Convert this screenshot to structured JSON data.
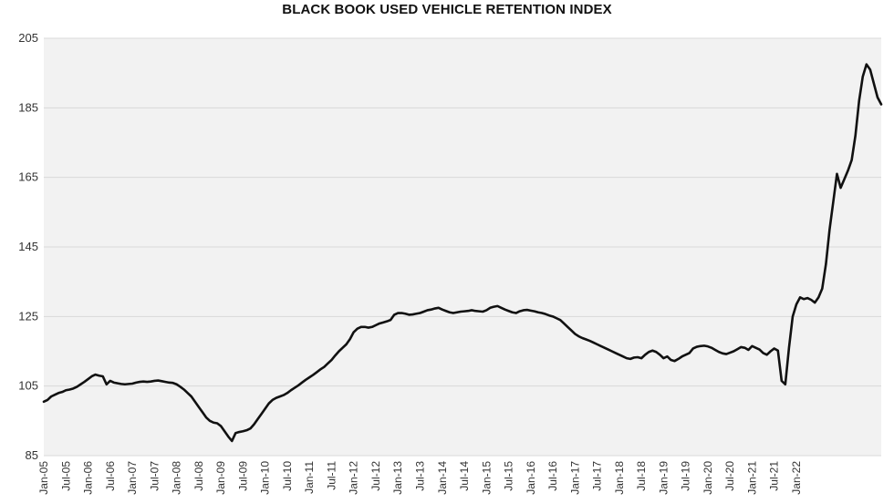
{
  "chart_data": {
    "type": "line",
    "title": "BLACK BOOK USED VEHICLE RETENTION INDEX",
    "xlabel": "",
    "ylabel": "",
    "ylim": [
      85,
      205
    ],
    "yticks": [
      85,
      105,
      125,
      145,
      165,
      185,
      205
    ],
    "grid": true,
    "legend": "none",
    "line_color": "#111111",
    "plot_background": "#f2f2f2",
    "gridline_color": "#d9d9d9",
    "x_tick_labels": [
      "Jan-05",
      "Jul-05",
      "Jan-06",
      "Jul-06",
      "Jan-07",
      "Jul-07",
      "Jan-08",
      "Jul-08",
      "Jan-09",
      "Jul-09",
      "Jan-10",
      "Jul-10",
      "Jan-11",
      "Jul-11",
      "Jan-12",
      "Jul-12",
      "Jan-13",
      "Jul-13",
      "Jan-14",
      "Jul-14",
      "Jan-15",
      "Jul-15",
      "Jan-16",
      "Jul-16",
      "Jan-17",
      "Jul-17",
      "Jan-18",
      "Jul-18",
      "Jan-19",
      "Jul-19",
      "Jan-20",
      "Jul-20",
      "Jan-21",
      "Jul-21",
      "Jan-22"
    ],
    "series": [
      {
        "x_start": "Jan-05",
        "frequency": "monthly",
        "values": [
          100.5,
          101.0,
          102.0,
          102.5,
          103.0,
          103.3,
          103.8,
          104.0,
          104.3,
          104.8,
          105.5,
          106.2,
          107.0,
          107.8,
          108.3,
          108.0,
          107.8,
          105.5,
          106.5,
          106.0,
          105.8,
          105.6,
          105.5,
          105.6,
          105.7,
          106.0,
          106.2,
          106.3,
          106.2,
          106.3,
          106.5,
          106.6,
          106.4,
          106.2,
          106.0,
          105.9,
          105.5,
          104.8,
          104.0,
          103.0,
          102.0,
          100.5,
          99.0,
          97.5,
          96.0,
          95.0,
          94.5,
          94.3,
          93.5,
          92.0,
          90.5,
          89.2,
          91.5,
          91.8,
          92.0,
          92.3,
          92.8,
          94.0,
          95.5,
          97.0,
          98.5,
          100.0,
          101.0,
          101.6,
          102.0,
          102.4,
          103.0,
          103.8,
          104.5,
          105.2,
          106.0,
          106.8,
          107.5,
          108.2,
          109.0,
          109.8,
          110.5,
          111.5,
          112.5,
          113.8,
          115.0,
          116.0,
          117.0,
          118.5,
          120.5,
          121.5,
          122.0,
          122.0,
          121.8,
          122.0,
          122.5,
          123.0,
          123.3,
          123.6,
          124.0,
          125.5,
          126.0,
          126.0,
          125.8,
          125.5,
          125.6,
          125.8,
          126.0,
          126.4,
          126.8,
          127.0,
          127.3,
          127.5,
          127.0,
          126.6,
          126.2,
          126.0,
          126.2,
          126.4,
          126.5,
          126.6,
          126.8,
          126.6,
          126.5,
          126.4,
          126.8,
          127.5,
          127.8,
          128.0,
          127.5,
          127.0,
          126.6,
          126.2,
          126.0,
          126.5,
          126.8,
          126.9,
          126.7,
          126.5,
          126.2,
          126.0,
          125.7,
          125.3,
          125.0,
          124.5,
          124.0,
          123.0,
          122.0,
          121.0,
          120.0,
          119.3,
          118.8,
          118.4,
          118.0,
          117.5,
          117.0,
          116.5,
          116.0,
          115.5,
          115.0,
          114.5,
          114.0,
          113.5,
          113.0,
          112.8,
          113.2,
          113.3,
          113.0,
          114.0,
          114.8,
          115.2,
          114.8,
          114.0,
          113.0,
          113.5,
          112.5,
          112.2,
          112.8,
          113.5,
          114.0,
          114.5,
          115.8,
          116.3,
          116.5,
          116.6,
          116.4,
          116.0,
          115.4,
          114.8,
          114.4,
          114.2,
          114.6,
          115.0,
          115.6,
          116.2,
          116.0,
          115.4,
          116.5,
          116.0,
          115.5,
          114.5,
          114.0,
          115.0,
          115.8,
          115.2,
          106.5,
          105.5,
          116.0,
          125.0,
          128.5,
          130.5,
          130.0,
          130.3,
          129.8,
          129.0,
          130.5,
          133.0,
          140.0,
          150.0,
          158.0,
          166.0,
          162.0,
          164.5,
          167.0,
          170.0,
          177.0,
          187.0,
          194.0,
          197.5,
          196.0,
          192.0,
          188.0,
          186.0
        ]
      }
    ]
  }
}
